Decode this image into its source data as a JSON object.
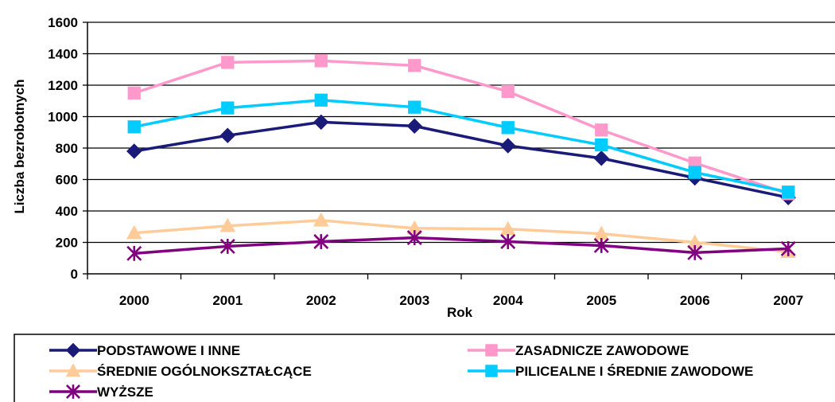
{
  "chart_data": {
    "type": "line",
    "title": "",
    "xlabel": "Rok",
    "ylabel": "Liczba bezrobotnych",
    "ylim": [
      0,
      1600
    ],
    "yticks": [
      0,
      200,
      400,
      600,
      800,
      1000,
      1200,
      1400,
      1600
    ],
    "grid": true,
    "legend_position": "bottom",
    "categories": [
      "2000",
      "2001",
      "2002",
      "2003",
      "2004",
      "2005",
      "2006",
      "2007"
    ],
    "series": [
      {
        "name": "PODSTAWOWE I INNE",
        "color": "#1a1a78",
        "marker": "diamond",
        "values": [
          780,
          880,
          965,
          940,
          815,
          735,
          610,
          485
        ]
      },
      {
        "name": "ZASADNICZE ZAWODOWE",
        "color": "#ff99cc",
        "marker": "square",
        "values": [
          1150,
          1345,
          1355,
          1325,
          1160,
          915,
          705,
          510
        ]
      },
      {
        "name": "ŚREDNIE OGÓLNOKSZTAŁCĄCE",
        "color": "#ffcc99",
        "marker": "triangle",
        "values": [
          260,
          305,
          340,
          290,
          285,
          255,
          200,
          140
        ]
      },
      {
        "name": "PILICEALNE I ŚREDNIE ZAWODOWE",
        "color": "#00ccff",
        "marker": "square",
        "values": [
          935,
          1055,
          1105,
          1060,
          930,
          820,
          645,
          520
        ]
      },
      {
        "name": "WYŻSZE",
        "color": "#800080",
        "marker": "asterisk",
        "values": [
          130,
          175,
          205,
          230,
          205,
          180,
          135,
          160
        ]
      }
    ]
  }
}
